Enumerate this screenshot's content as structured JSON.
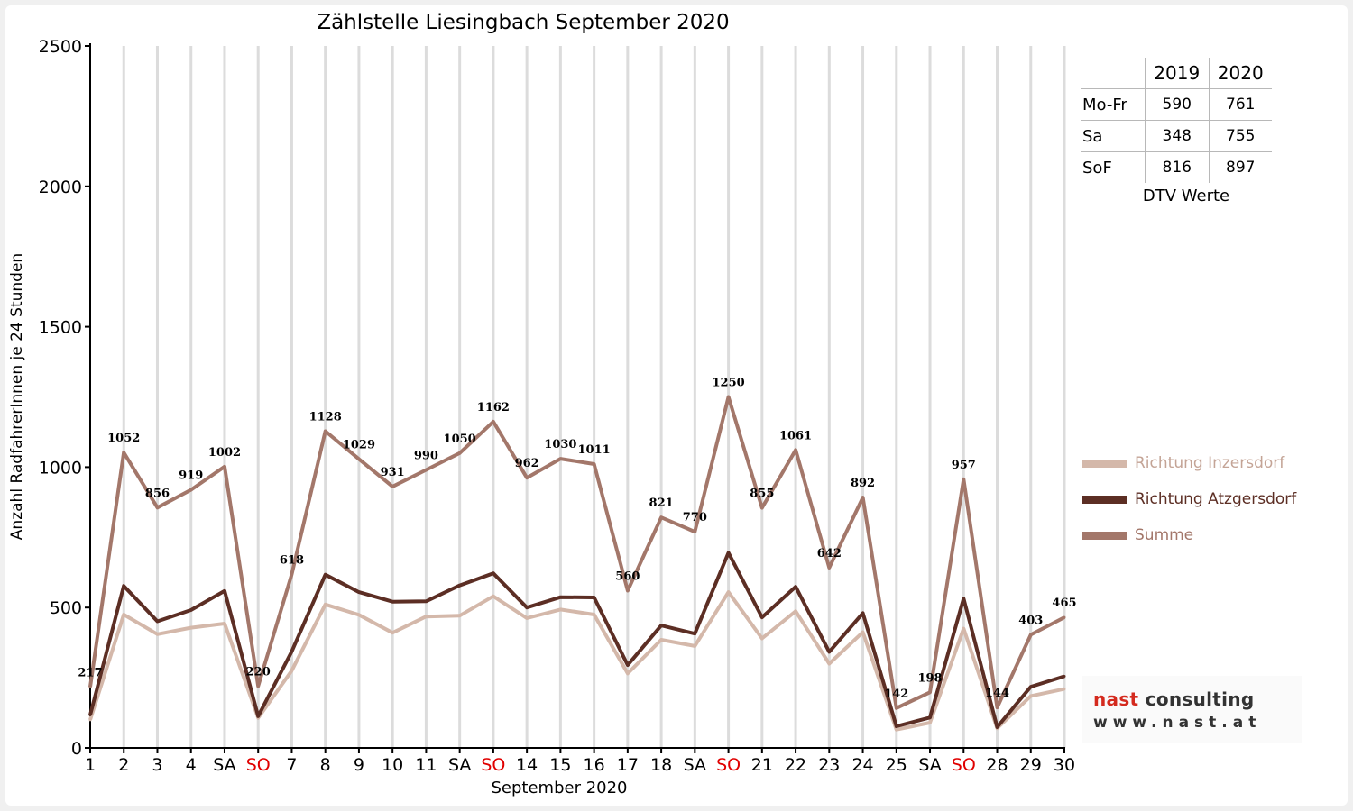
{
  "chart_data": {
    "type": "line",
    "title": "Zählstelle Liesingbach September 2020",
    "xlabel": "September 2020",
    "ylabel": "Anzahl RadfahrerInnen je 24 Stunden",
    "ylim": [
      0,
      2500
    ],
    "yticks": [
      0,
      500,
      1000,
      1500,
      2000,
      2500
    ],
    "grid": "vertical",
    "legend_position": "right",
    "categories": [
      "1",
      "2",
      "3",
      "4",
      "SA",
      "SO",
      "7",
      "8",
      "9",
      "10",
      "11",
      "SA",
      "SO",
      "14",
      "15",
      "16",
      "17",
      "18",
      "SA",
      "SO",
      "21",
      "22",
      "23",
      "24",
      "25",
      "SA",
      "SO",
      "28",
      "29",
      "30"
    ],
    "category_colors": {
      "SO": "#e00000",
      "default": "#000000"
    },
    "series": [
      {
        "name": "Richtung Inzersdorf",
        "color": "#d4b8aa",
        "values": [
          100,
          475,
          405,
          428,
          443,
          107,
          275,
          511,
          474,
          410,
          468,
          471,
          540,
          462,
          493,
          475,
          265,
          385,
          363,
          555,
          390,
          487,
          300,
          412,
          65,
          90,
          425,
          70,
          185,
          210
        ]
      },
      {
        "name": "Richtung Atzgersdorf",
        "color": "#5c2e24",
        "values": [
          117,
          577,
          451,
          491,
          559,
          113,
          343,
          617,
          555,
          521,
          522,
          579,
          622,
          500,
          537,
          536,
          295,
          436,
          407,
          695,
          465,
          574,
          342,
          480,
          77,
          108,
          532,
          74,
          218,
          255
        ]
      },
      {
        "name": "Summe",
        "color": "#a3776a",
        "values": [
          217,
          1052,
          856,
          919,
          1002,
          220,
          618,
          1128,
          1029,
          931,
          990,
          1050,
          1162,
          962,
          1030,
          1011,
          560,
          821,
          770,
          1250,
          855,
          1061,
          642,
          892,
          142,
          198,
          957,
          144,
          403,
          465
        ]
      }
    ],
    "data_labels": [
      "217",
      "1052",
      "856",
      "919",
      "1002",
      "220",
      "618",
      "1128",
      "1029",
      "931",
      "990",
      "1050",
      "1162",
      "962",
      "1030",
      "1011",
      "560",
      "821",
      "770",
      "1250",
      "855",
      "1061",
      "642",
      "892",
      "142",
      "198",
      "957",
      "144",
      "403",
      "465"
    ]
  },
  "dtv": {
    "years": [
      "2019",
      "2020"
    ],
    "rows": [
      {
        "label": "Mo-Fr",
        "v2019": "590",
        "v2020": "761"
      },
      {
        "label": "Sa",
        "v2019": "348",
        "v2020": "755"
      },
      {
        "label": "SoF",
        "v2019": "816",
        "v2020": "897"
      }
    ],
    "caption": "DTV Werte"
  },
  "logo": {
    "part1": "nast",
    "part2": "consulting",
    "url": "www.nast.at"
  }
}
